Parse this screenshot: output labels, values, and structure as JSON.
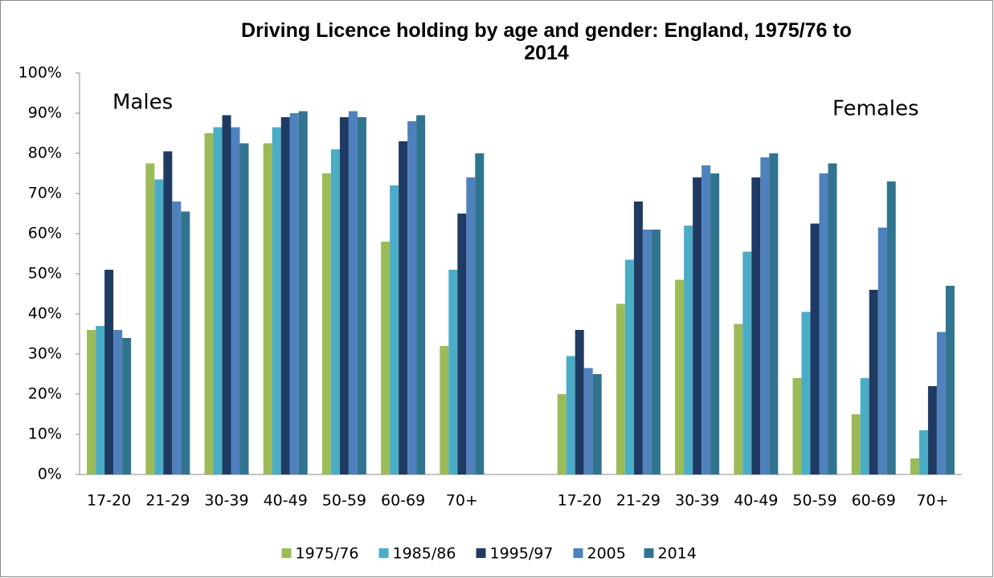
{
  "chart_data": {
    "type": "bar",
    "title": "Driving Licence holding by age and gender: England, 1975/76 to 2014",
    "annotations": [
      "Males",
      "Females"
    ],
    "categories": [
      "17-20",
      "21-29",
      "30-39",
      "40-49",
      "50-59",
      "60-69",
      "70+",
      null,
      "17-20",
      "21-29",
      "30-39",
      "40-49",
      "50-59",
      "60-69",
      "70+"
    ],
    "series": [
      {
        "name": "1975/76",
        "color": "#9bbb59",
        "values": [
          36,
          77.5,
          85,
          82.5,
          75,
          58,
          32,
          null,
          20,
          42.5,
          48.5,
          37.5,
          24,
          15,
          4
        ]
      },
      {
        "name": "1985/86",
        "color": "#4bacc6",
        "values": [
          37,
          73.5,
          86.5,
          86.5,
          81,
          72,
          51,
          null,
          29.5,
          53.5,
          62,
          55.5,
          40.5,
          24,
          11
        ]
      },
      {
        "name": "1995/97",
        "color": "#1f3b63",
        "values": [
          51,
          80.5,
          89.5,
          89,
          89,
          83,
          65,
          null,
          36,
          68,
          74,
          74,
          62.5,
          46,
          22
        ]
      },
      {
        "name": "2005",
        "color": "#4f81bd",
        "values": [
          36,
          68,
          86.5,
          90,
          90.5,
          88,
          74,
          null,
          26.5,
          61,
          77,
          79,
          75,
          61.5,
          35.5
        ]
      },
      {
        "name": "2014",
        "color": "#31748f",
        "values": [
          34,
          65.5,
          82.5,
          90.5,
          89,
          89.5,
          80,
          null,
          25,
          61,
          75,
          80,
          77.5,
          73,
          47
        ]
      }
    ],
    "ylim": [
      0,
      100
    ],
    "yticks": [
      {
        "value": 0,
        "label": "0%"
      },
      {
        "value": 10,
        "label": "10%"
      },
      {
        "value": 20,
        "label": "20%"
      },
      {
        "value": 30,
        "label": "30%"
      },
      {
        "value": 40,
        "label": "40%"
      },
      {
        "value": 50,
        "label": "50%"
      },
      {
        "value": 60,
        "label": "60%"
      },
      {
        "value": 70,
        "label": "70%"
      },
      {
        "value": 80,
        "label": "80%"
      },
      {
        "value": 90,
        "label": "90%"
      },
      {
        "value": 100,
        "label": "100%"
      }
    ],
    "grid": false,
    "legend": "bottom"
  }
}
